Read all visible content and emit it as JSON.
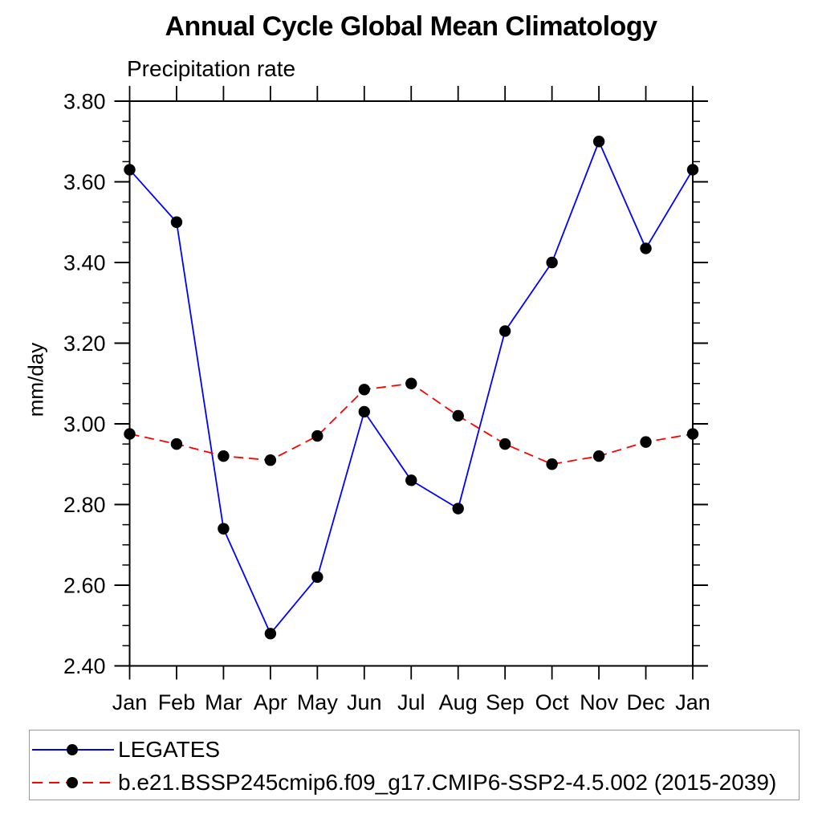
{
  "figure": {
    "background": "#ffffff"
  },
  "chart_data": {
    "type": "line",
    "title": "Annual Cycle Global Mean Climatology",
    "subtitle": "Precipitation rate",
    "ylabel": "mm/day",
    "xlabel": "",
    "categories": [
      "Jan",
      "Feb",
      "Mar",
      "Apr",
      "May",
      "Jun",
      "Jul",
      "Aug",
      "Sep",
      "Oct",
      "Nov",
      "Dec",
      "Jan"
    ],
    "ylim": [
      2.4,
      3.8
    ],
    "ytick_major": 0.2,
    "ytick_minor": 0.05,
    "ytick_decimals": 2,
    "grid": false,
    "legend_position": "bottom-left-box",
    "axis_color": "#000000",
    "marker_color": "#000000",
    "marker_shape": "filled-circle",
    "legend_border_color": "#999999",
    "series": [
      {
        "name": "LEGATES",
        "color": "#0000ff",
        "line_style": "solid",
        "marker": "circle",
        "values": [
          3.63,
          3.5,
          2.74,
          2.48,
          2.62,
          3.03,
          2.86,
          2.79,
          3.23,
          3.4,
          3.7,
          3.435,
          3.63
        ]
      },
      {
        "name": "b.e21.BSSP245cmip6.f09_g17.CMIP6-SSP2-4.5.002 (2015-2039)",
        "color": "#ff0000",
        "line_style": "dashed",
        "marker": "circle",
        "values": [
          2.975,
          2.95,
          2.92,
          2.91,
          2.97,
          3.085,
          3.1,
          3.02,
          2.95,
          2.9,
          2.92,
          2.955,
          2.975
        ]
      }
    ]
  }
}
